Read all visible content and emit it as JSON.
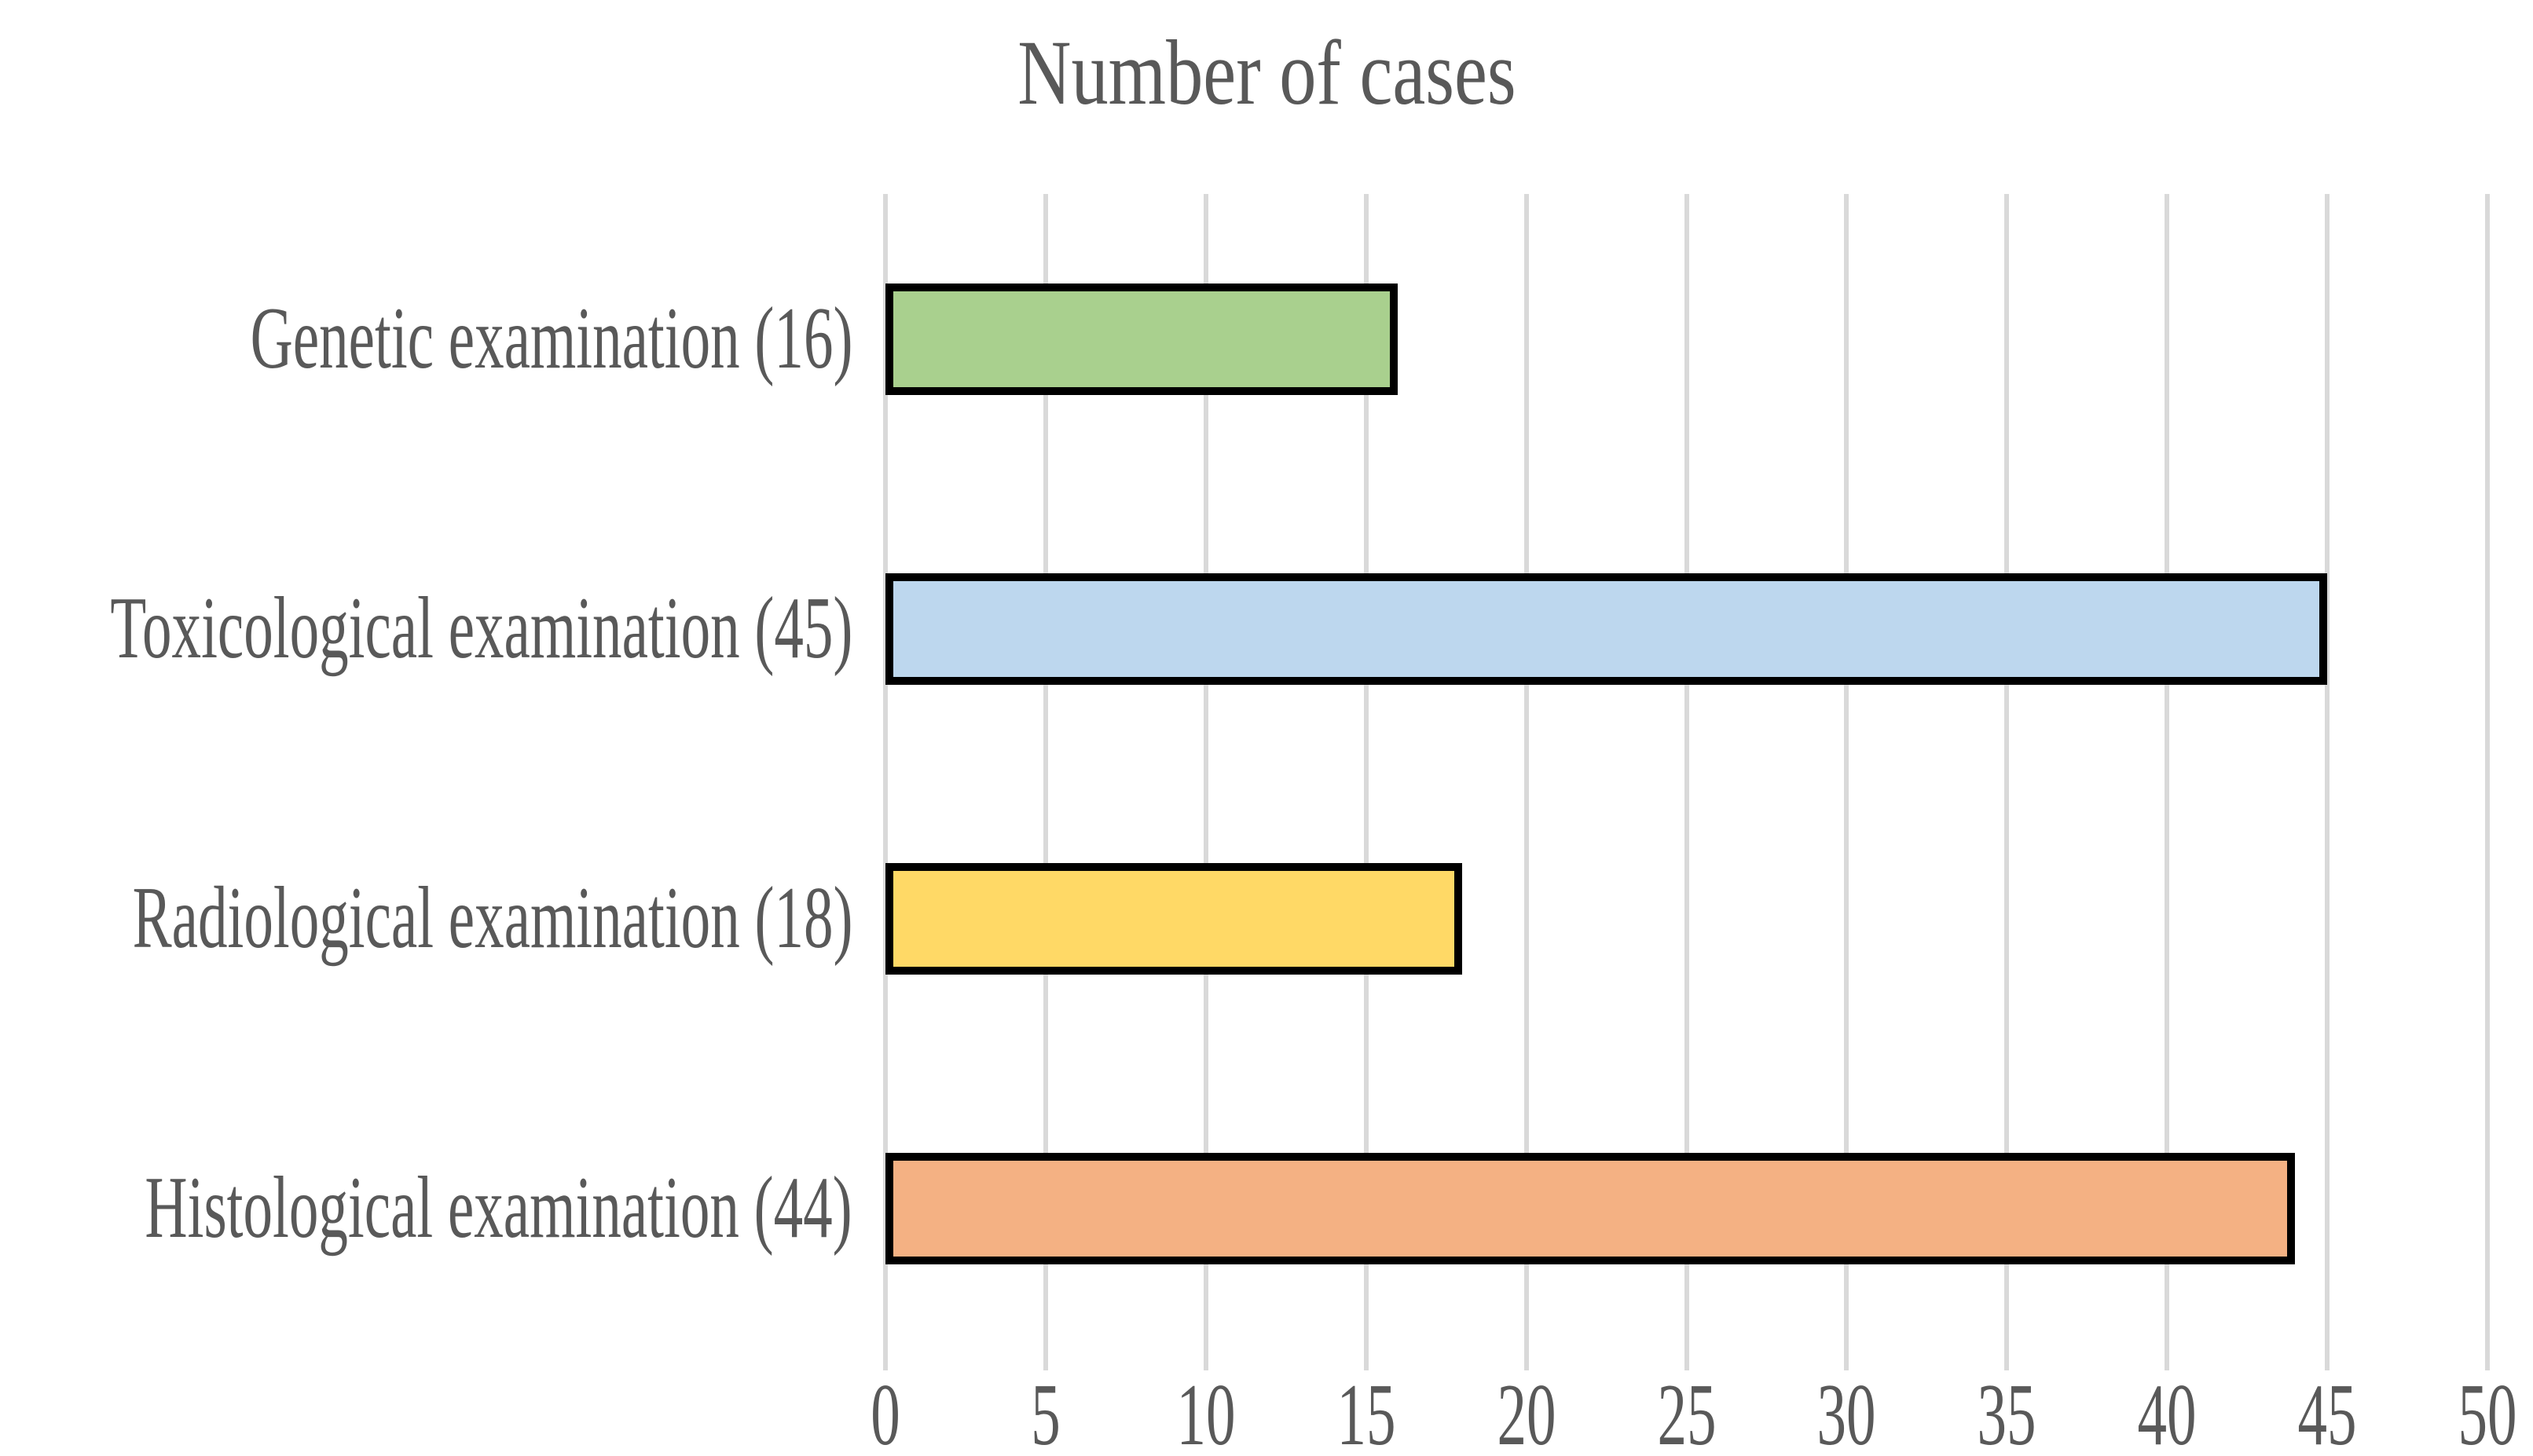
{
  "chart_data": {
    "type": "bar",
    "orientation": "horizontal",
    "title": "Number of cases",
    "categories": [
      "Genetic examination (16)",
      "Toxicological examination (45)",
      "Radiological examination (18)",
      "Histological examination (44)"
    ],
    "values": [
      16,
      45,
      18,
      44
    ],
    "bar_colors": [
      "#A9D08E",
      "#BDD7EE",
      "#FFD966",
      "#F4B183"
    ],
    "bar_border_color": "#000000",
    "xlabel": "",
    "ylabel": "",
    "xlim": [
      0,
      50
    ],
    "xticks": [
      0,
      5,
      10,
      15,
      20,
      25,
      30,
      35,
      40,
      45,
      50
    ],
    "grid": "vertical",
    "gridline_color": "#D9D9D9",
    "axis_text_color": "#595959",
    "title_color": "#595959",
    "legend_position": "none",
    "background_color": "#FFFFFF"
  }
}
